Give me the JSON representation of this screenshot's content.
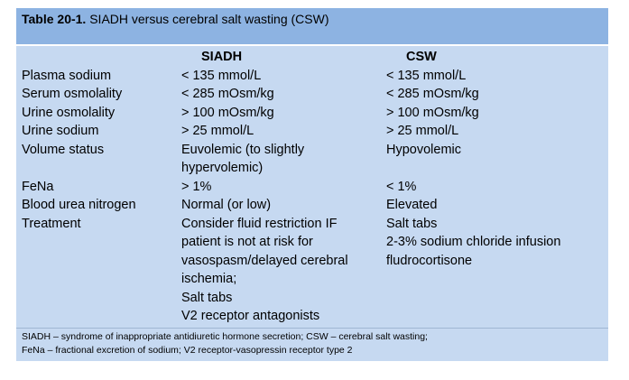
{
  "table": {
    "title_bold": "Table 20-1.",
    "title_rest": " SIADH versus cerebral salt wasting (CSW)",
    "headers": [
      "",
      "SIADH",
      "CSW"
    ],
    "rows": [
      {
        "label": "Plasma sodium",
        "siadh": [
          "< 135 mmol/L"
        ],
        "csw": [
          "< 135 mmol/L"
        ]
      },
      {
        "label": "Serum osmolality",
        "siadh": [
          "< 285 mOsm/kg"
        ],
        "csw": [
          "< 285 mOsm/kg"
        ]
      },
      {
        "label": "Urine osmolality",
        "siadh": [
          "> 100 mOsm/kg"
        ],
        "csw": [
          "> 100 mOsm/kg"
        ]
      },
      {
        "label": "Urine sodium",
        "siadh": [
          "> 25 mmol/L"
        ],
        "csw": [
          "> 25 mmol/L"
        ]
      },
      {
        "label": "Volume status",
        "siadh": [
          "Euvolemic (to slightly",
          "hypervolemic)"
        ],
        "csw": [
          "Hypovolemic"
        ]
      },
      {
        "label": "FeNa",
        "siadh": [
          "> 1%"
        ],
        "csw": [
          "< 1%"
        ]
      },
      {
        "label": "Blood urea nitrogen",
        "siadh": [
          "Normal (or low)"
        ],
        "csw": [
          "Elevated"
        ]
      },
      {
        "label": "Treatment",
        "siadh": [
          "Consider fluid restriction IF",
          "patient is not at risk for",
          "vasospasm/delayed cerebral",
          "ischemia;",
          "Salt tabs",
          "V2 receptor antagonists"
        ],
        "csw": [
          "Salt tabs",
          "2-3% sodium chloride infusion",
          "fludrocortisone"
        ]
      }
    ],
    "footnotes": [
      "SIADH – syndrome of inappropriate antidiuretic hormone secretion; CSW – cerebral salt wasting;",
      "FeNa – fractional excretion of sodium; V2 receptor-vasopressin receptor type 2"
    ],
    "colors": {
      "title_bg": "#8db3e2",
      "body_bg": "#c6d9f1"
    }
  }
}
